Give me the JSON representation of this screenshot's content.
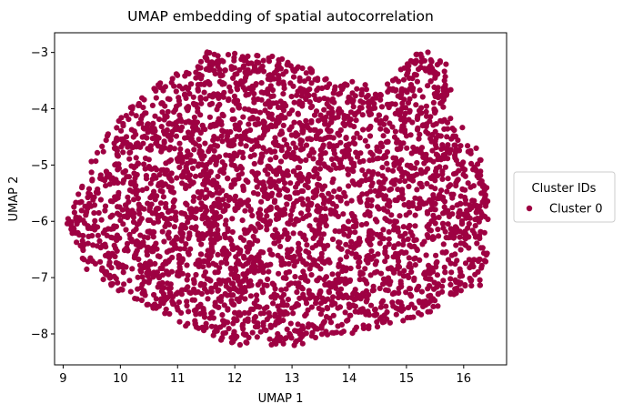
{
  "chart_data": {
    "type": "scatter",
    "title": "UMAP embedding of spatial autocorrelation",
    "xlabel": "UMAP 1",
    "ylabel": "UMAP 2",
    "xlim": [
      8.85,
      16.75
    ],
    "ylim": [
      -8.55,
      -2.65
    ],
    "xticks": [
      9,
      10,
      11,
      12,
      13,
      14,
      15,
      16
    ],
    "yticks": [
      -3,
      -4,
      -5,
      -6,
      -7,
      -8
    ],
    "grid": false,
    "legend": {
      "title": "Cluster IDs",
      "placement": "outside-right",
      "entries": [
        "Cluster 0"
      ]
    },
    "series": [
      {
        "name": "Cluster 0",
        "color": "#9e0142",
        "point_count_approx": 3500,
        "extent": {
          "x_min": 9.05,
          "x_max": 16.45,
          "y_min": -8.3,
          "y_max": -2.95
        },
        "boundary_outline": [
          [
            9.05,
            -5.95
          ],
          [
            9.3,
            -5.4
          ],
          [
            9.5,
            -4.9
          ],
          [
            9.8,
            -4.4
          ],
          [
            10.2,
            -3.95
          ],
          [
            10.8,
            -3.45
          ],
          [
            11.3,
            -3.05
          ],
          [
            11.5,
            -2.98
          ],
          [
            12.0,
            -3.02
          ],
          [
            12.5,
            -3.05
          ],
          [
            13.0,
            -3.1
          ],
          [
            13.4,
            -3.3
          ],
          [
            13.8,
            -3.5
          ],
          [
            14.2,
            -3.5
          ],
          [
            14.5,
            -3.75
          ],
          [
            14.8,
            -3.4
          ],
          [
            15.2,
            -3.0
          ],
          [
            15.4,
            -2.98
          ],
          [
            15.7,
            -3.2
          ],
          [
            15.8,
            -3.6
          ],
          [
            15.6,
            -4.1
          ],
          [
            15.9,
            -4.2
          ],
          [
            16.2,
            -4.6
          ],
          [
            16.35,
            -5.0
          ],
          [
            16.45,
            -5.6
          ],
          [
            16.45,
            -6.3
          ],
          [
            16.4,
            -6.8
          ],
          [
            16.3,
            -7.15
          ],
          [
            15.95,
            -7.3
          ],
          [
            15.5,
            -7.6
          ],
          [
            15.0,
            -7.75
          ],
          [
            14.6,
            -7.9
          ],
          [
            14.0,
            -8.0
          ],
          [
            13.5,
            -8.05
          ],
          [
            13.05,
            -8.25
          ],
          [
            12.6,
            -8.2
          ],
          [
            12.0,
            -8.2
          ],
          [
            11.6,
            -8.1
          ],
          [
            11.1,
            -7.9
          ],
          [
            10.6,
            -7.6
          ],
          [
            10.1,
            -7.3
          ],
          [
            9.7,
            -7.1
          ],
          [
            9.4,
            -6.85
          ],
          [
            9.25,
            -6.5
          ],
          [
            9.05,
            -6.05
          ]
        ]
      }
    ]
  }
}
